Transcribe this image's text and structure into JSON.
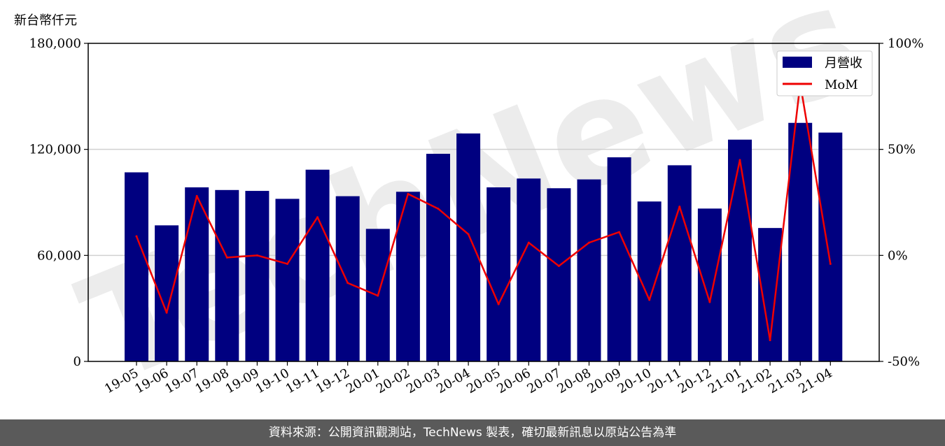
{
  "chart_data": {
    "type": "bar+line",
    "unit_label": "新台幣仟元",
    "categories": [
      "19-05",
      "19-06",
      "19-07",
      "19-08",
      "19-09",
      "19-10",
      "19-11",
      "19-12",
      "20-01",
      "20-02",
      "20-03",
      "20-04",
      "20-05",
      "20-06",
      "20-07",
      "20-08",
      "20-09",
      "20-10",
      "20-11",
      "20-12",
      "21-01",
      "21-02",
      "21-03",
      "21-04"
    ],
    "series": [
      {
        "name": "月營收",
        "kind": "bar",
        "axis": "left",
        "color": "#000080",
        "values": [
          107000,
          77000,
          98500,
          97000,
          96500,
          92000,
          108500,
          93500,
          75000,
          96000,
          117500,
          129000,
          98500,
          103500,
          98000,
          103000,
          115500,
          90500,
          111000,
          86500,
          125500,
          75500,
          135000,
          129500
        ]
      },
      {
        "name": "MoM",
        "kind": "line",
        "axis": "right",
        "color": "#ee0000",
        "values": [
          9,
          -27,
          28,
          -1,
          0,
          -4,
          18,
          -13,
          -19,
          29,
          22,
          10,
          -23,
          6,
          -5,
          6,
          11,
          -21,
          23,
          -22,
          45,
          -40,
          81,
          -4
        ]
      }
    ],
    "ylim_left": [
      0,
      180000
    ],
    "yticks_left": [
      "0",
      "60,000",
      "120,000",
      "180,000"
    ],
    "ylim_right": [
      -50,
      100
    ],
    "yticks_right": [
      "-50%",
      "0%",
      "50%",
      "100%"
    ],
    "grid": "horizontal",
    "legend_position": "top-right"
  },
  "watermark": "TechNews",
  "footer": "資料來源：公開資訊觀測站，TechNews 製表，確切最新訊息以原站公告為準"
}
